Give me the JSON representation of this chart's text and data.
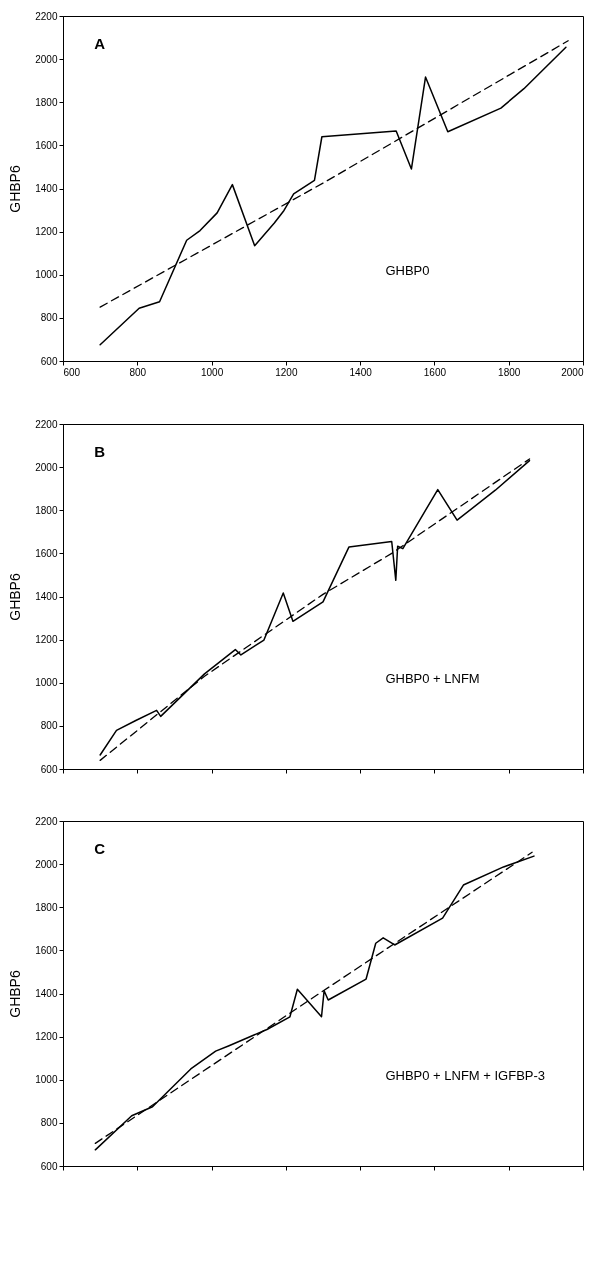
{
  "chart_data": [
    {
      "type": "line",
      "ylabel": "GHBP6",
      "annotations": [
        "A",
        "GHBP0"
      ],
      "xlim": [
        600,
        2000
      ],
      "xticks": [
        600,
        800,
        1000,
        1200,
        1400,
        1600,
        1800,
        2000
      ],
      "ylim": [
        600,
        2200
      ],
      "yticks": [
        600,
        800,
        1000,
        1200,
        1400,
        1600,
        1800,
        2000,
        2200
      ],
      "grid": false,
      "marker": "none",
      "series": [
        {
          "color": "#000000",
          "line_style": "solid",
          "x": [
            700,
            805,
            860,
            933,
            969,
            1015,
            1056,
            1116,
            1169,
            1195,
            1221,
            1277,
            1297,
            1497,
            1538,
            1576,
            1636,
            1779,
            1841,
            1954
          ],
          "values": [
            675,
            845,
            875,
            1160,
            1205,
            1287,
            1418,
            1135,
            1240,
            1298,
            1375,
            1438,
            1640,
            1667,
            1490,
            1917,
            1663,
            1773,
            1863,
            2055
          ]
        },
        {
          "color": "#000000",
          "line_style": "dashed",
          "x": [
            700,
            1300,
            1960
          ],
          "values": [
            850,
            1425,
            2085
          ]
        }
      ]
    },
    {
      "type": "line",
      "ylabel": "GHBP6",
      "annotations": [
        "B",
        "GHBP0 + LNFM"
      ],
      "xlim": [
        600,
        2000
      ],
      "xticks": [
        600,
        800,
        1000,
        1200,
        1400,
        1600,
        1800,
        2000
      ],
      "ylim": [
        600,
        2200
      ],
      "yticks": [
        600,
        800,
        1000,
        1200,
        1400,
        1600,
        1800,
        2000,
        2200
      ],
      "tick_labels": "y",
      "grid": false,
      "marker": "none",
      "series": [
        {
          "color": "#000000",
          "line_style": "solid",
          "x": [
            700,
            744,
            796,
            852,
            863,
            981,
            1064,
            1079,
            1141,
            1193,
            1219,
            1300,
            1370,
            1485,
            1496,
            1501,
            1515,
            1609,
            1661,
            1764,
            1856
          ],
          "values": [
            665,
            779,
            825,
            872,
            844,
            1041,
            1154,
            1129,
            1198,
            1416,
            1285,
            1375,
            1630,
            1655,
            1475,
            1633,
            1622,
            1896,
            1754,
            1893,
            2030
          ]
        },
        {
          "color": "#000000",
          "line_style": "dashed",
          "x": [
            700,
            981,
            1300,
            1485,
            1856
          ],
          "values": [
            640,
            1030,
            1410,
            1600,
            2038
          ]
        }
      ]
    },
    {
      "type": "line",
      "ylabel": "GHBP6",
      "annotations": [
        "C",
        "GHBP0 + LNFM + IGFBP-3"
      ],
      "xlim": [
        600,
        2000
      ],
      "xticks": [
        600,
        800,
        1000,
        1200,
        1400,
        1600,
        1800,
        2000
      ],
      "ylim": [
        600,
        2200
      ],
      "yticks": [
        600,
        800,
        1000,
        1200,
        1400,
        1600,
        1800,
        2000,
        2200
      ],
      "tick_labels": "y",
      "grid": false,
      "marker": "none",
      "series": [
        {
          "color": "#000000",
          "line_style": "solid",
          "x": [
            687,
            785,
            841,
            944,
            1011,
            1047,
            1149,
            1211,
            1231,
            1296,
            1303,
            1314,
            1416,
            1442,
            1462,
            1493,
            1622,
            1678,
            1786,
            1868
          ],
          "values": [
            675,
            833,
            875,
            1050,
            1133,
            1158,
            1233,
            1292,
            1420,
            1292,
            1413,
            1370,
            1467,
            1633,
            1658,
            1625,
            1750,
            1903,
            1987,
            2037
          ]
        },
        {
          "color": "#000000",
          "line_style": "dashed",
          "x": [
            687,
            1303,
            1863
          ],
          "values": [
            705,
            1415,
            2055
          ]
        }
      ]
    }
  ]
}
